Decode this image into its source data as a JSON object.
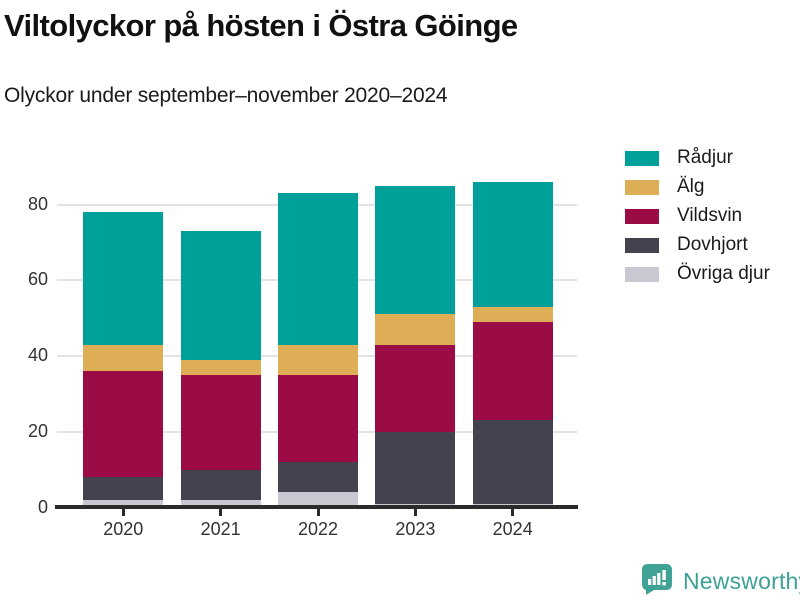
{
  "header": {
    "title": "Viltolyckor på hösten i Östra Göinge",
    "subtitle": "Olyckor under september–november 2020–2024"
  },
  "chart_data": {
    "type": "bar",
    "stacked": true,
    "title": "Viltolyckor på hösten i Östra Göinge",
    "subtitle": "Olyckor under september–november 2020–2024",
    "categories": [
      "2020",
      "2021",
      "2022",
      "2023",
      "2024"
    ],
    "series": [
      {
        "name": "Övriga djur",
        "color": "#c9c8d2",
        "values": [
          2,
          2,
          4,
          1,
          1
        ]
      },
      {
        "name": "Dovhjort",
        "color": "#454250",
        "values": [
          6,
          8,
          8,
          19,
          22
        ]
      },
      {
        "name": "Vildsvin",
        "color": "#9b0b45",
        "values": [
          28,
          25,
          23,
          23,
          26
        ]
      },
      {
        "name": "Älg",
        "color": "#ddae55",
        "values": [
          7,
          4,
          8,
          8,
          4
        ]
      },
      {
        "name": "Rådjur",
        "color": "#00a09a",
        "values": [
          35,
          34,
          40,
          34,
          33
        ]
      }
    ],
    "totals": [
      78,
      73,
      83,
      85,
      86
    ],
    "xlabel": "",
    "ylabel": "",
    "ylim": [
      0,
      90
    ],
    "yticks": [
      0,
      20,
      40,
      60,
      80
    ],
    "grid": true,
    "legend_position": "right",
    "legend_order": [
      "Rådjur",
      "Älg",
      "Vildsvin",
      "Dovhjort",
      "Övriga djur"
    ]
  },
  "legend": {
    "items": [
      {
        "label": "Rådjur",
        "color": "#00a09a"
      },
      {
        "label": "Älg",
        "color": "#ddae55"
      },
      {
        "label": "Vildsvin",
        "color": "#9b0b45"
      },
      {
        "label": "Dovhjort",
        "color": "#454250"
      },
      {
        "label": "Övriga djur",
        "color": "#c9c8d2"
      }
    ]
  },
  "footer": {
    "brand": "Newsworthy",
    "brand_color": "#3da195",
    "logo_color": "#3fa294"
  }
}
